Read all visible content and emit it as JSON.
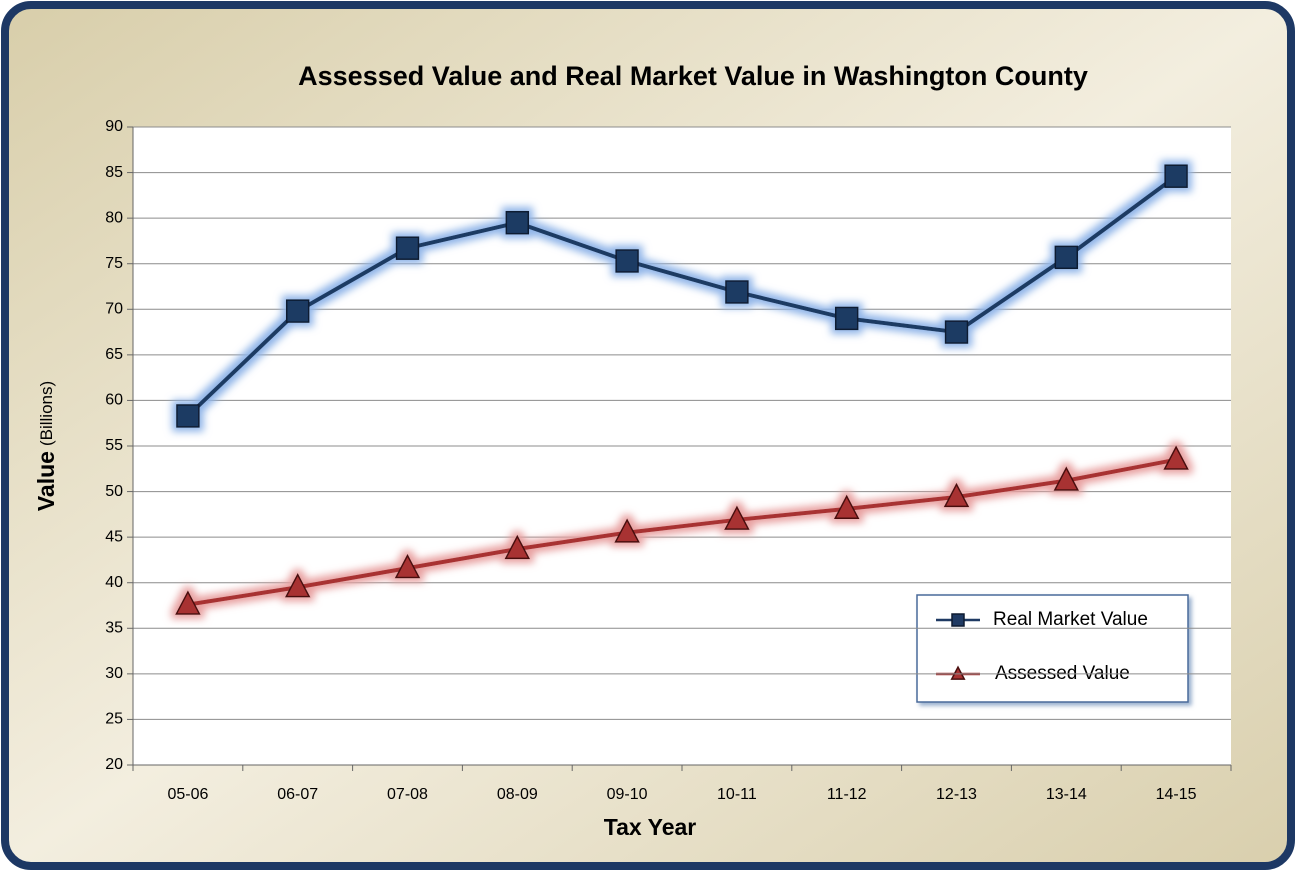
{
  "chart_data": {
    "type": "line",
    "title": "Assessed Value and Real Market Value in Washington County",
    "xlabel": "Tax Year",
    "ylabel": "Value",
    "ylabel_unit": "(Billions)",
    "categories": [
      "05-06",
      "06-07",
      "07-08",
      "08-09",
      "09-10",
      "10-11",
      "11-12",
      "12-13",
      "13-14",
      "14-15"
    ],
    "series": [
      {
        "name": "Real Market Value",
        "color": "#1f3a63",
        "marker": "square",
        "glow": "#8fb4e8",
        "values": [
          58.3,
          69.8,
          76.7,
          79.5,
          75.3,
          71.9,
          69.0,
          67.5,
          75.7,
          84.6
        ]
      },
      {
        "name": "Assessed Value",
        "color": "#a83232",
        "marker": "triangle",
        "glow": "#e8a0a0",
        "values": [
          37.6,
          39.5,
          41.6,
          43.7,
          45.5,
          46.9,
          48.1,
          49.4,
          51.2,
          53.5
        ]
      }
    ],
    "ylim": [
      20,
      90
    ],
    "yticks": [
      20,
      25,
      30,
      35,
      40,
      45,
      50,
      55,
      60,
      65,
      70,
      75,
      80,
      85,
      90
    ],
    "grid": true,
    "legend": "lower right"
  }
}
